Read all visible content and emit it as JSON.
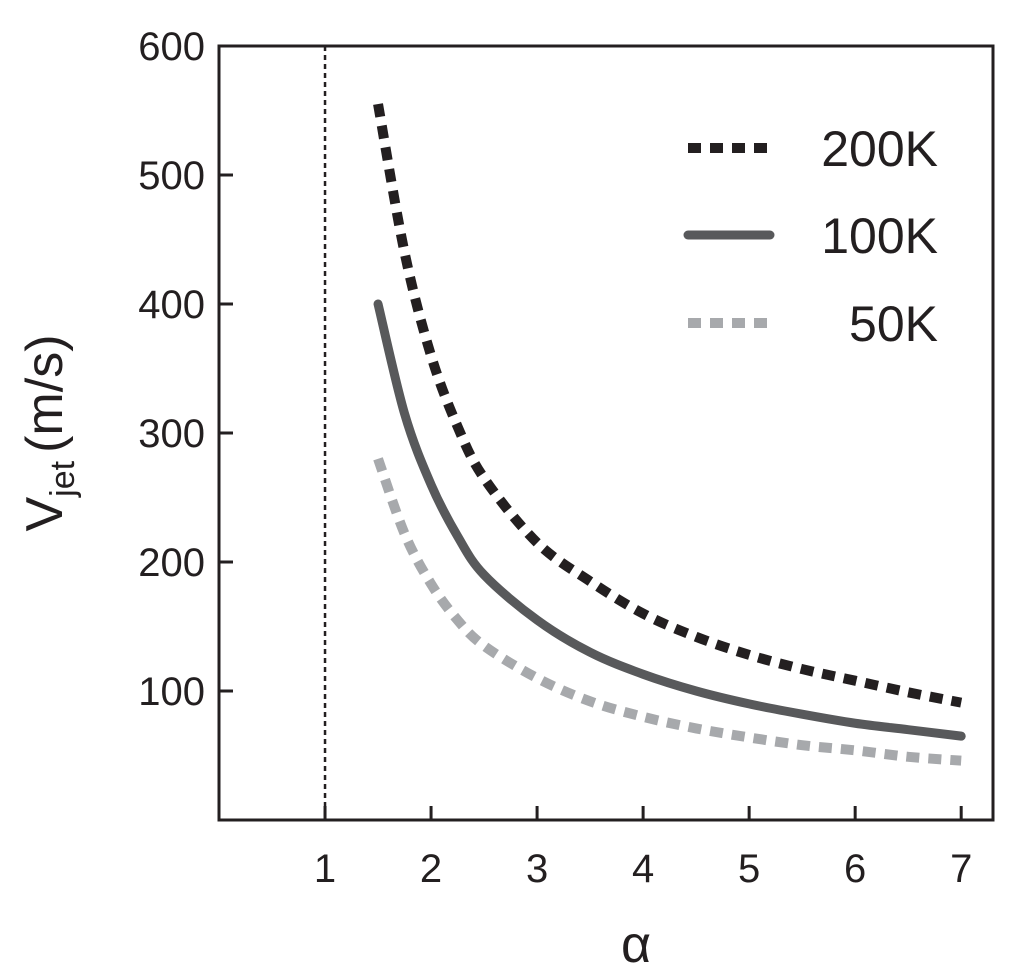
{
  "chart_data": {
    "type": "line",
    "xlabel": "α",
    "ylabel": {
      "main": "V",
      "sub": "jet",
      "unit": "(m/s)"
    },
    "xlim": [
      0,
      7.3
    ],
    "ylim": [
      0,
      600
    ],
    "xticks": [
      1,
      2,
      3,
      4,
      5,
      6,
      7
    ],
    "yticks": [
      100,
      200,
      300,
      400,
      500,
      600
    ],
    "grid": false,
    "reference_line": {
      "x": 1,
      "style": "dotted"
    },
    "legend": {
      "placement": "top-right"
    },
    "series": [
      {
        "name": "200K",
        "style": "dotted-thick",
        "color": "#231f20",
        "x": [
          1.5,
          1.75,
          2.0,
          2.25,
          2.5,
          3.0,
          3.5,
          4.0,
          4.5,
          5.0,
          5.5,
          6.0,
          6.5,
          7.0
        ],
        "y": [
          555,
          440,
          360,
          305,
          265,
          215,
          185,
          160,
          142,
          128,
          117,
          108,
          99,
          91
        ]
      },
      {
        "name": "100K",
        "style": "solid",
        "color": "#58595b",
        "x": [
          1.5,
          1.75,
          2.0,
          2.25,
          2.5,
          3.0,
          3.5,
          4.0,
          4.5,
          5.0,
          5.5,
          6.0,
          6.5,
          7.0
        ],
        "y": [
          400,
          315,
          260,
          220,
          190,
          155,
          130,
          113,
          100,
          90,
          82,
          75,
          70,
          65
        ]
      },
      {
        "name": "50K",
        "style": "dotted-thick",
        "color": "#a7a9ac",
        "x": [
          1.5,
          1.75,
          2.0,
          2.25,
          2.5,
          3.0,
          3.5,
          4.0,
          4.5,
          5.0,
          5.5,
          6.0,
          6.5,
          7.0
        ],
        "y": [
          280,
          222,
          183,
          155,
          135,
          110,
          92,
          80,
          71,
          64,
          58,
          54,
          49,
          46
        ]
      }
    ]
  }
}
